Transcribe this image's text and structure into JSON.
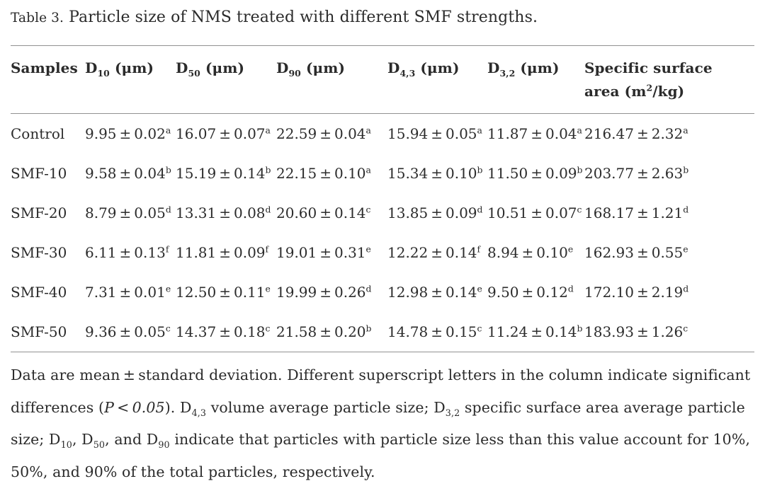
{
  "colors": {
    "text": "#2b2b2b",
    "rule": "#919191"
  },
  "title": {
    "label": "Table 3.",
    "caption": "Particle size of NMS treated with different SMF strengths."
  },
  "table": {
    "headers": [
      [
        {
          "t": "Samples"
        }
      ],
      [
        {
          "t": "D"
        },
        {
          "t": "10",
          "s": "sub"
        },
        {
          "t": " (μm)"
        }
      ],
      [
        {
          "t": "D"
        },
        {
          "t": "50",
          "s": "sub"
        },
        {
          "t": " (μm)"
        }
      ],
      [
        {
          "t": "D"
        },
        {
          "t": "90",
          "s": "sub"
        },
        {
          "t": " (μm)"
        }
      ],
      [
        {
          "t": "D"
        },
        {
          "t": "4,3",
          "s": "sub"
        },
        {
          "t": " (μm)"
        }
      ],
      [
        {
          "t": "D"
        },
        {
          "t": "3,2",
          "s": "sub"
        },
        {
          "t": " (μm)"
        }
      ],
      [
        {
          "t": "Specific surface area (m"
        },
        {
          "t": "2",
          "s": "sup"
        },
        {
          "t": "/kg)"
        }
      ]
    ],
    "rows": [
      {
        "sample": "Control",
        "cells": [
          [
            {
              "t": "9.95 ± 0.02"
            },
            {
              "t": "a",
              "s": "sup"
            }
          ],
          [
            {
              "t": "16.07 ± 0.07"
            },
            {
              "t": "a",
              "s": "sup"
            }
          ],
          [
            {
              "t": "22.59 ± 0.04"
            },
            {
              "t": "a",
              "s": "sup"
            }
          ],
          [
            {
              "t": "15.94 ± 0.05"
            },
            {
              "t": "a",
              "s": "sup"
            }
          ],
          [
            {
              "t": "11.87 ± 0.04"
            },
            {
              "t": "a",
              "s": "sup"
            }
          ],
          [
            {
              "t": "216.47 ± 2.32"
            },
            {
              "t": "a",
              "s": "sup"
            }
          ]
        ]
      },
      {
        "sample": "SMF-10",
        "cells": [
          [
            {
              "t": "9.58 ± 0.04"
            },
            {
              "t": "b",
              "s": "sup"
            }
          ],
          [
            {
              "t": "15.19 ± 0.14"
            },
            {
              "t": "b",
              "s": "sup"
            }
          ],
          [
            {
              "t": "22.15 ± 0.10"
            },
            {
              "t": "a",
              "s": "sup"
            }
          ],
          [
            {
              "t": "15.34 ± 0.10"
            },
            {
              "t": "b",
              "s": "sup"
            }
          ],
          [
            {
              "t": "11.50 ± 0.09"
            },
            {
              "t": "b",
              "s": "sup"
            }
          ],
          [
            {
              "t": "203.77 ± 2.63"
            },
            {
              "t": "b",
              "s": "sup"
            }
          ]
        ]
      },
      {
        "sample": "SMF-20",
        "cells": [
          [
            {
              "t": "8.79 ± 0.05"
            },
            {
              "t": "d",
              "s": "sup"
            }
          ],
          [
            {
              "t": "13.31 ± 0.08"
            },
            {
              "t": "d",
              "s": "sup"
            }
          ],
          [
            {
              "t": "20.60 ± 0.14"
            },
            {
              "t": "c",
              "s": "sup"
            }
          ],
          [
            {
              "t": "13.85 ± 0.09"
            },
            {
              "t": "d",
              "s": "sup"
            }
          ],
          [
            {
              "t": "10.51 ± 0.07"
            },
            {
              "t": "c",
              "s": "sup"
            }
          ],
          [
            {
              "t": "168.17 ± 1.21"
            },
            {
              "t": "d",
              "s": "sup"
            }
          ]
        ]
      },
      {
        "sample": "SMF-30",
        "cells": [
          [
            {
              "t": "6.11 ± 0.13"
            },
            {
              "t": "f",
              "s": "sup"
            }
          ],
          [
            {
              "t": "11.81 ± 0.09"
            },
            {
              "t": "f",
              "s": "sup"
            }
          ],
          [
            {
              "t": "19.01 ± 0.31"
            },
            {
              "t": "e",
              "s": "sup"
            }
          ],
          [
            {
              "t": "12.22 ± 0.14"
            },
            {
              "t": "f",
              "s": "sup"
            }
          ],
          [
            {
              "t": "8.94 ± 0.10"
            },
            {
              "t": "e",
              "s": "sup"
            }
          ],
          [
            {
              "t": "162.93 ± 0.55"
            },
            {
              "t": "e",
              "s": "sup"
            }
          ]
        ]
      },
      {
        "sample": "SMF-40",
        "cells": [
          [
            {
              "t": "7.31 ± 0.01"
            },
            {
              "t": "e",
              "s": "sup"
            }
          ],
          [
            {
              "t": "12.50 ± 0.11"
            },
            {
              "t": "e",
              "s": "sup"
            }
          ],
          [
            {
              "t": "19.99 ± 0.26"
            },
            {
              "t": "d",
              "s": "sup"
            }
          ],
          [
            {
              "t": "12.98 ± 0.14"
            },
            {
              "t": "e",
              "s": "sup"
            }
          ],
          [
            {
              "t": "9.50 ± 0.12"
            },
            {
              "t": "d",
              "s": "sup"
            }
          ],
          [
            {
              "t": "172.10 ± 2.19"
            },
            {
              "t": "d",
              "s": "sup"
            }
          ]
        ]
      },
      {
        "sample": "SMF-50",
        "cells": [
          [
            {
              "t": "9.36 ± 0.05"
            },
            {
              "t": "c",
              "s": "sup"
            }
          ],
          [
            {
              "t": "14.37 ± 0.18"
            },
            {
              "t": "c",
              "s": "sup"
            }
          ],
          [
            {
              "t": "21.58 ± 0.20"
            },
            {
              "t": "b",
              "s": "sup"
            }
          ],
          [
            {
              "t": "14.78 ± 0.15"
            },
            {
              "t": "c",
              "s": "sup"
            }
          ],
          [
            {
              "t": "11.24 ± 0.14"
            },
            {
              "t": "b",
              "s": "sup"
            }
          ],
          [
            {
              "t": "183.93 ± 1.26"
            },
            {
              "t": "c",
              "s": "sup"
            }
          ]
        ]
      }
    ]
  },
  "footnote": [
    {
      "t": "Data are mean ± standard deviation. Different superscript letters in the column indicate significant differences ("
    },
    {
      "t": "P < 0.05",
      "s": "i"
    },
    {
      "t": "). D"
    },
    {
      "t": "4,3",
      "s": "sub"
    },
    {
      "t": " volume average particle size; D"
    },
    {
      "t": "3,2",
      "s": "sub"
    },
    {
      "t": " specific surface area average particle size; D"
    },
    {
      "t": "10",
      "s": "sub"
    },
    {
      "t": ", D"
    },
    {
      "t": "50",
      "s": "sub"
    },
    {
      "t": ", and D"
    },
    {
      "t": "90",
      "s": "sub"
    },
    {
      "t": " indicate that particles with particle size less than this value account for 10%, 50%, and 90% of the total particles, respectively."
    }
  ]
}
